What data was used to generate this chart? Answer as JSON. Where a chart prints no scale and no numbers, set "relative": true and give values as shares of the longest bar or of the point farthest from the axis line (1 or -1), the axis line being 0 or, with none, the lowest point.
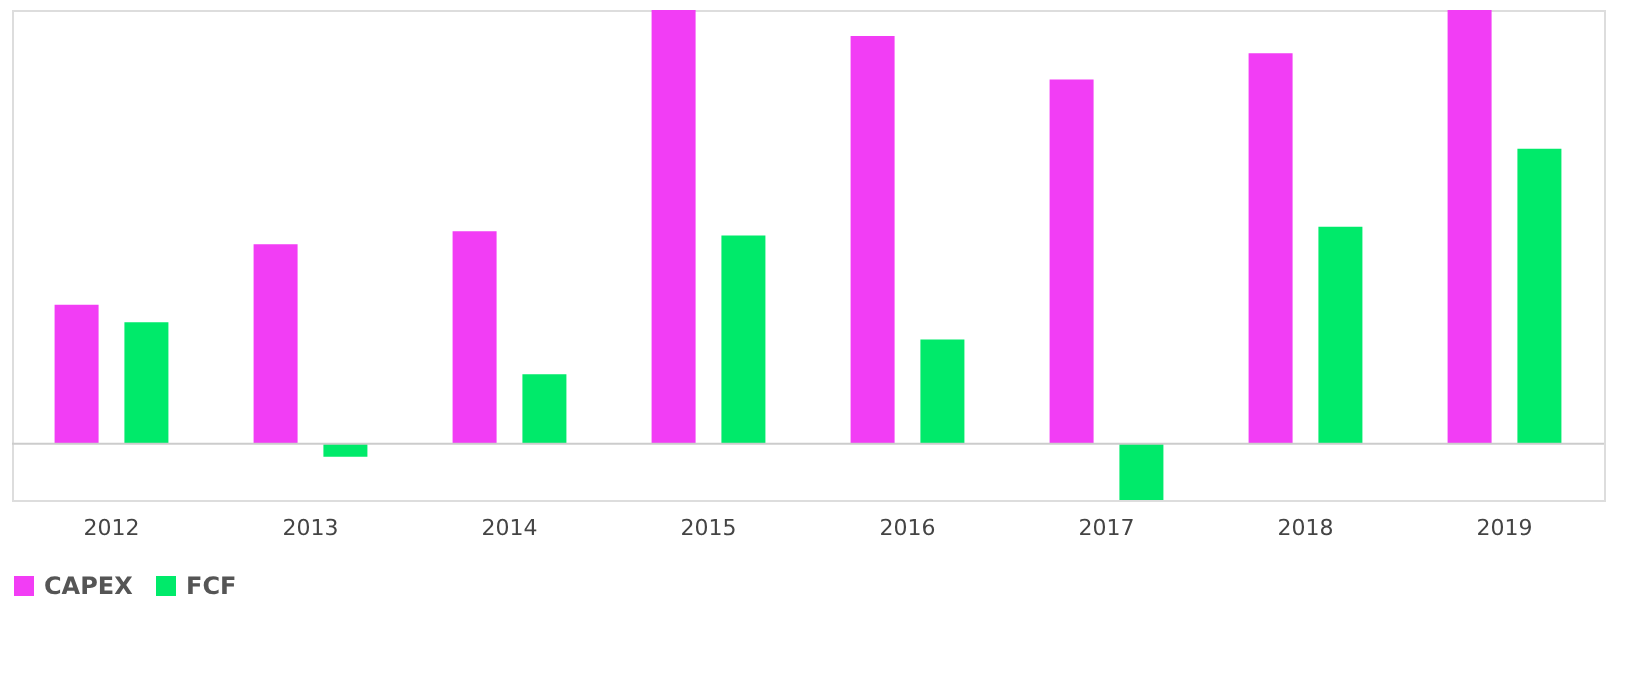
{
  "chart_data": {
    "type": "bar",
    "relative": true,
    "categories": [
      "2012",
      "2013",
      "2014",
      "2015",
      "2016",
      "2017",
      "2018",
      "2019"
    ],
    "series": [
      {
        "name": "CAPEX",
        "color": "#f23df5",
        "values": [
          0.32,
          0.46,
          0.49,
          1.0,
          0.94,
          0.84,
          0.9,
          1.0
        ]
      },
      {
        "name": "FCF",
        "color": "#00ea6a",
        "values": [
          0.28,
          -0.03,
          0.16,
          0.48,
          0.24,
          -0.13,
          0.5,
          0.68
        ]
      }
    ],
    "legend": "bottom",
    "grid": false
  }
}
